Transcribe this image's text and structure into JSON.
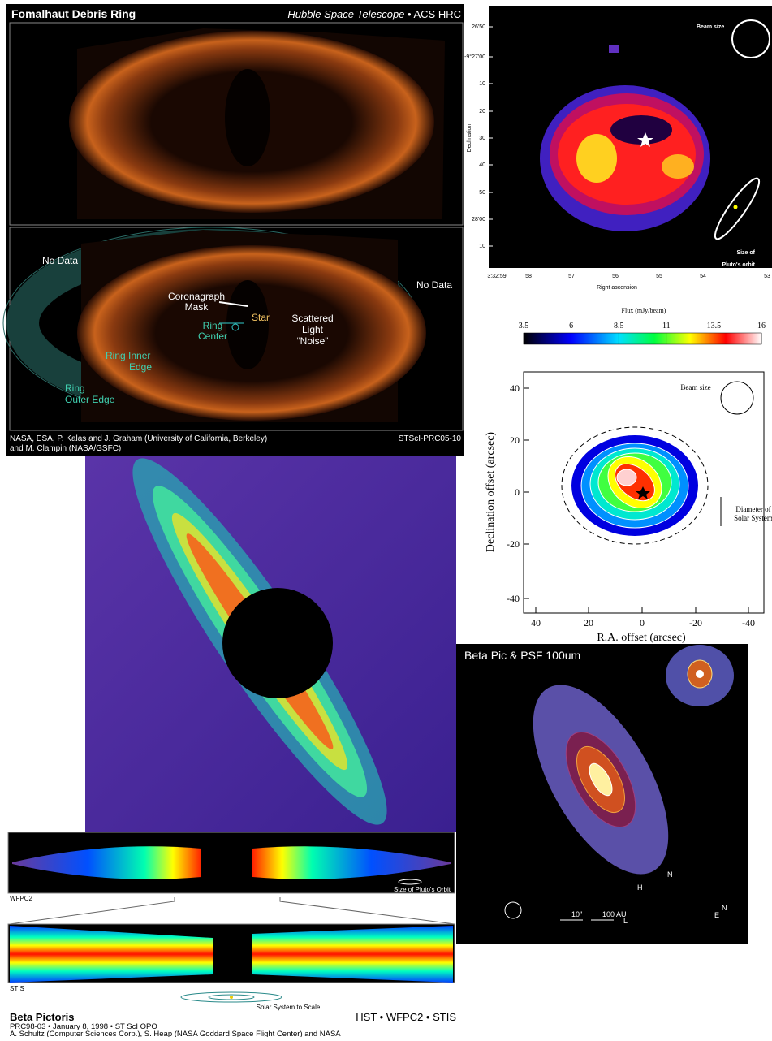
{
  "fomalhaut": {
    "title": "Fomalhaut Debris Ring",
    "telescope": "Hubble Space Telescope",
    "camera": "• ACS HRC",
    "labels": {
      "no_data_left": "No Data",
      "no_data_right": "No Data",
      "mask": [
        "Coronagraph",
        "Mask"
      ],
      "star": "Star",
      "ring_center": [
        "Ring",
        "Center"
      ],
      "noise": [
        "Scattered",
        "Light",
        "“Noise”"
      ],
      "inner_edge": [
        "Ring Inner",
        "Edge"
      ],
      "outer_edge": [
        "Ring",
        "Outer Edge"
      ]
    },
    "credits": [
      "NASA, ESA, P. Kalas and J. Graham (University of California, Berkeley)",
      "and M. Clampin (NASA/GSFC)"
    ],
    "id": "STScI-PRC05-10"
  },
  "submm_map": {
    "yticks": [
      "26'50",
      "-9°27'00",
      "10",
      "20",
      "30",
      "40",
      "50",
      "28'00",
      "10"
    ],
    "xticks": [
      "3:32:59",
      "58",
      "57",
      "56",
      "55",
      "54",
      "53"
    ],
    "ylabel": "Declination",
    "xlabel": "Right ascension",
    "beam": "Beam size",
    "pluto": [
      "Size of",
      "Pluto's orbit"
    ]
  },
  "flux_map": {
    "colorbar_title": "Flux (mJy/beam)",
    "colorbar_ticks": [
      "3.5",
      "6",
      "8.5",
      "11",
      "13.5",
      "16"
    ],
    "yticks": [
      "40",
      "20",
      "0",
      "-20",
      "-40"
    ],
    "xticks": [
      "40",
      "20",
      "0",
      "-20",
      "-40"
    ],
    "ylabel": "Declination offset (arcsec)",
    "xlabel": "R.A. offset (arcsec)",
    "beam": "Beam size",
    "solar_system": [
      "Diameter of",
      "Solar System"
    ]
  },
  "psf_map": {
    "title": "Beta Pic & PSF 100um",
    "labels": [
      "N",
      "H",
      "10''",
      "100 AU",
      "L",
      "E",
      "N"
    ]
  },
  "beta_pictoris": {
    "pluto": "Size of Pluto's Orbit",
    "wfpc2": "WFPC2",
    "stis": "STIS",
    "scale": "Solar System to Scale",
    "title": "Beta Pictoris",
    "instruments": "HST • WFPC2 • STIS",
    "release": "PRC98-03 • January 8, 1998 • ST ScI OPO",
    "credits": "A. Schultz (Computer Sciences Corp.), S. Heap (NASA Goddard Space Flight Center) and NASA"
  }
}
